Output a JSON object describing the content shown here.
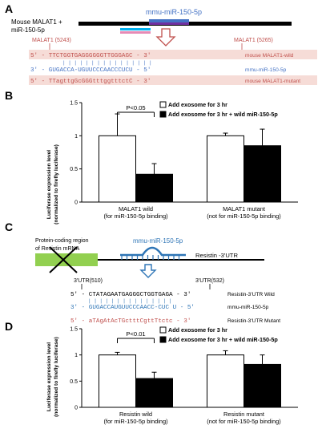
{
  "panelA": {
    "letter": "A",
    "gene_label_line1": "Mouse  MALAT1 +",
    "gene_label_line2": "miR-150-5p",
    "mirna_title": "mmu-miR-150-5p",
    "site1_label": "MALAT1 (5243)",
    "site2_label": "MALAT1 (5265)",
    "wild_seq": "5' - TTCTGGTGAGGGGGGTTGGGAGC - 3'",
    "wild_name": "mouse MALAT1-wild",
    "bars": "| | | | | |   | | | | | | | | | |",
    "mir_seq": "3' - GUGACCA-UGUUCCCAACCCUCU - 5'",
    "mir_name": "mmu-miR-150-5p",
    "mut_seq": "5' - TTagttgGcGGGtttggtttctC - 3'",
    "mut_name": "mouse MALAT1-mutant",
    "colors": {
      "wild_bg": "#f6dcd7",
      "wild_text": "#c0504d",
      "mir_text": "#4472c4",
      "bar_blue": "#4472c4",
      "bar_purple": "#7030a0",
      "arrow": "#c0504d",
      "cyan": "#00b0f0",
      "pink": "#e68ab5"
    }
  },
  "panelB": {
    "letter": "B",
    "chart_data": {
      "type": "bar",
      "ylabel": "Luciferase expression level",
      "ylabel2": "(normalized to firefly luciferase)",
      "ylim": [
        0,
        1.5
      ],
      "yticks": [
        "0",
        "0.5",
        "1",
        "1.5"
      ],
      "categories": [
        "MALAT1 wild",
        "MALAT1 mutant"
      ],
      "category_sublabels": [
        "(for miR-150-5p binding)",
        "(not for miR-150-5p binding)"
      ],
      "series": [
        {
          "name": "Add exosome for 3 hr",
          "values": [
            1.0,
            1.0
          ],
          "errors": [
            0.33,
            0.04
          ],
          "color": "#ffffff"
        },
        {
          "name": "Add exosome for 3 hr + wild miR-150-5p",
          "values": [
            0.42,
            0.85
          ],
          "errors": [
            0.16,
            0.25
          ],
          "color": "#000000"
        }
      ],
      "annotation": "P<0.05"
    }
  },
  "panelC": {
    "letter": "C",
    "coding_label_line1": "Protein-coding region",
    "coding_label_line2": "of Resistin mRNA",
    "mirna_title": "mmu-miR-150-5p",
    "utr_label": "Resistin -3'UTR",
    "site1_label": "3'UTR(510)",
    "site2_label": "3'UTR(532)",
    "wild_seq": "5' - CTATAGAATGAGGGCTGGTGAGA - 3'",
    "wild_name": "Resistin-3'UTR Wild",
    "bars": "| | | | | | | | | | | | |   | |",
    "mir_seq": "3' - GUGACCAUGUUCCCAACC-CUC U - 5'",
    "mir_name": "mmu-miR-150-5p",
    "mut_seq": "5' - aTAgAtAcTGctttCgttTtctc - 3'",
    "mut_name": "Resistin-3'UTR Mutant",
    "colors": {
      "green": "#92d050",
      "mir_blue": "#2e75b6",
      "arrow": "#2e75b6",
      "wild_text": "#000000",
      "mut_text": "#c0504d"
    }
  },
  "panelD": {
    "letter": "D",
    "chart_data": {
      "type": "bar",
      "ylabel": "Luciferase expression level",
      "ylabel2": "(normalized to firefly luciferase)",
      "ylim": [
        0,
        1.5
      ],
      "yticks": [
        "0",
        "0.5",
        "1",
        "1.5"
      ],
      "categories": [
        "Resistin wild",
        "Resistin mutant"
      ],
      "category_sublabels": [
        "(for miR-150-5p binding)",
        "(not for miR-150-5p binding)"
      ],
      "series": [
        {
          "name": "Add exosome for 3 hr",
          "values": [
            1.0,
            1.0
          ],
          "errors": [
            0.05,
            0.08
          ],
          "color": "#ffffff"
        },
        {
          "name": "Add exosome for 3 hr + wild miR-150-5p",
          "values": [
            0.55,
            0.82
          ],
          "errors": [
            0.12,
            0.18
          ],
          "color": "#000000"
        }
      ],
      "annotation": "P<0.01"
    }
  }
}
